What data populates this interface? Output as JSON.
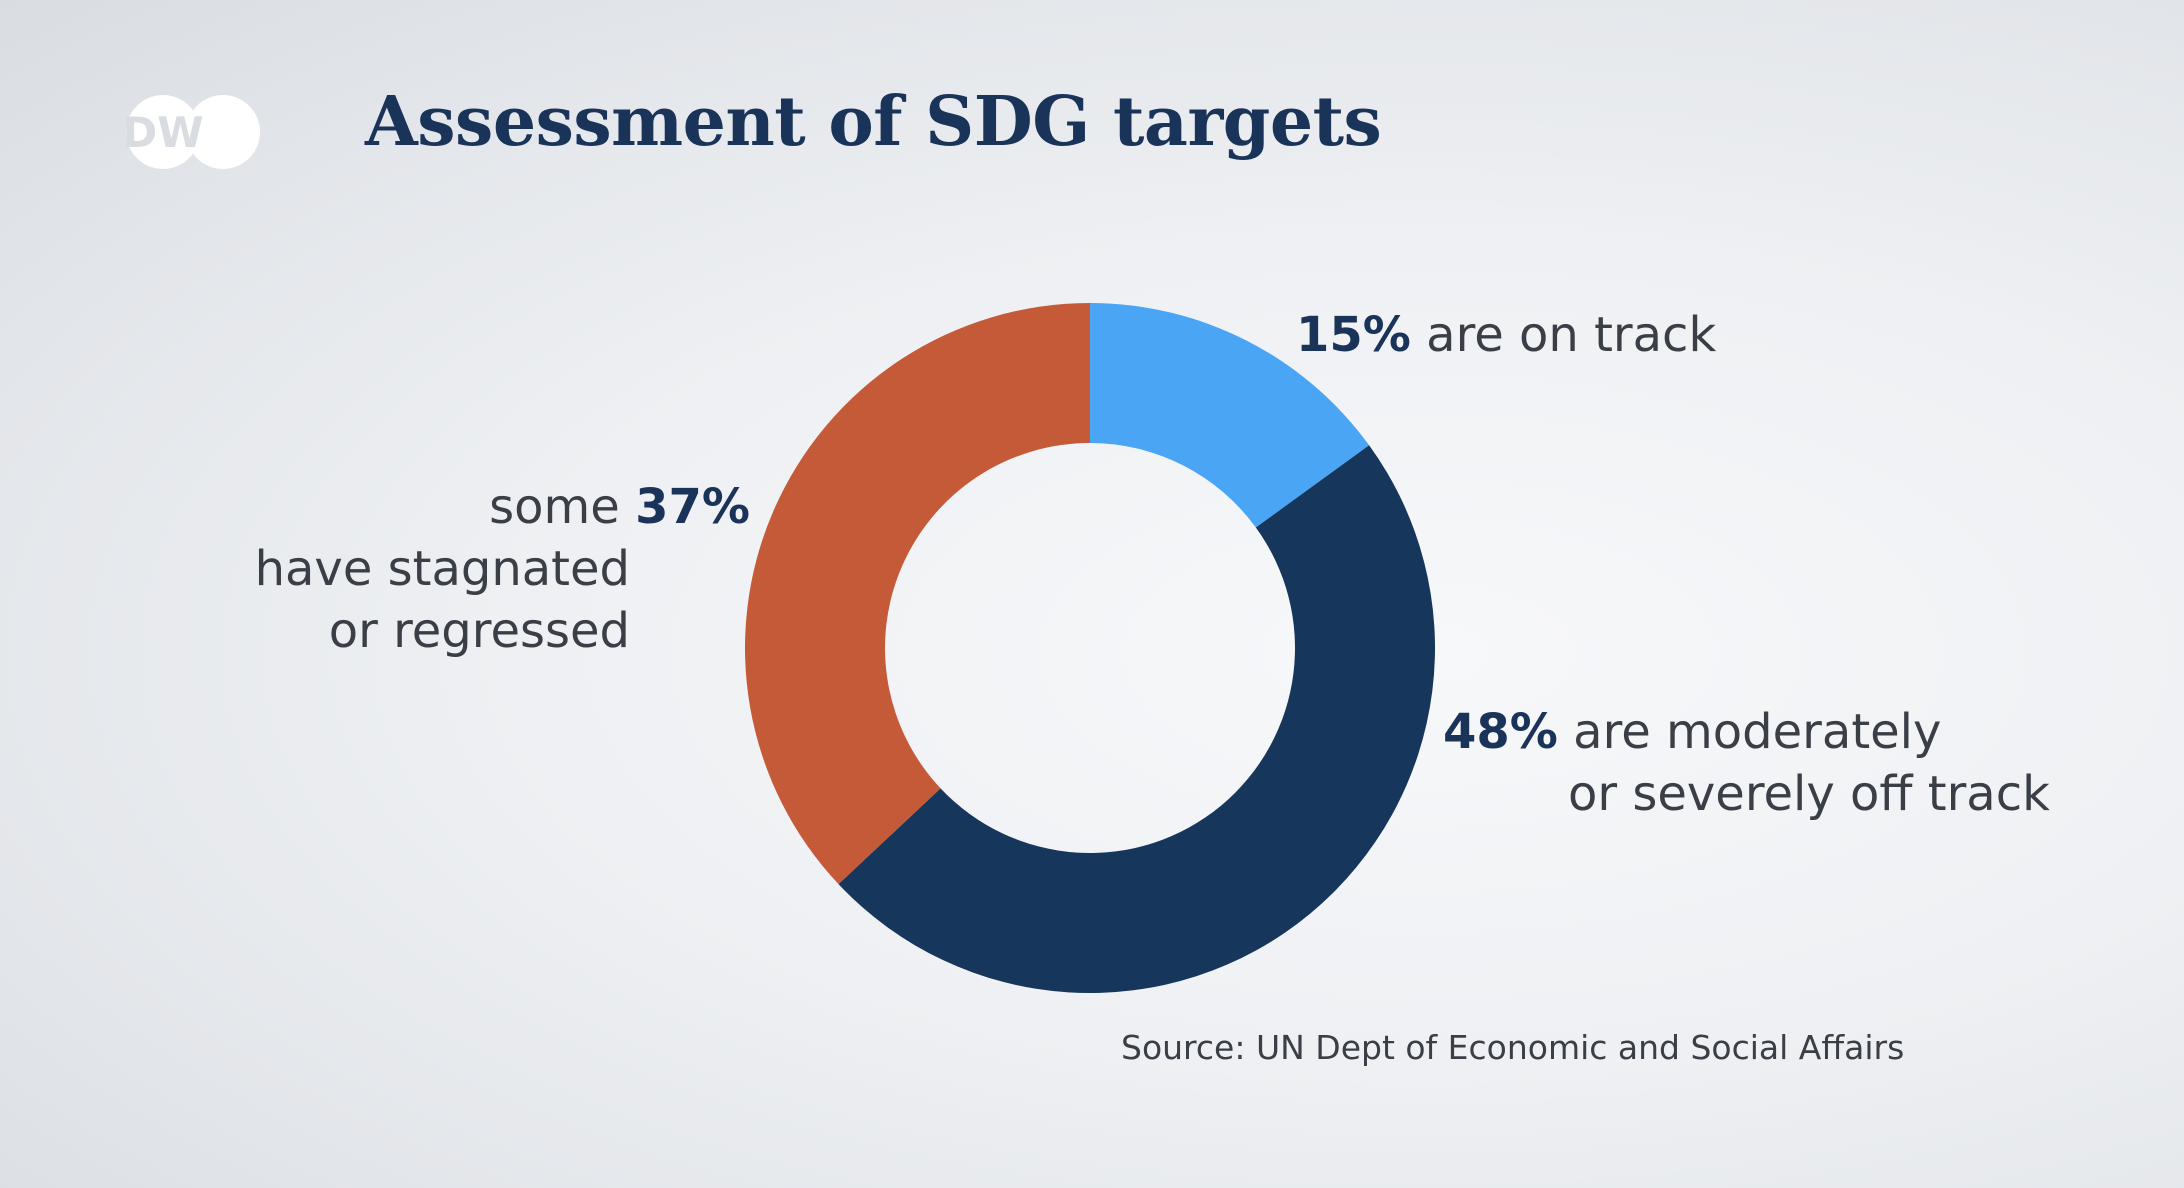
{
  "brand": {
    "logo_text": "DW"
  },
  "chart_data": {
    "type": "pie",
    "title": "Assessment of SDG targets",
    "donut": true,
    "slices": [
      {
        "value": 15,
        "color": "#4aa6f5",
        "label_pct": "15%",
        "label_prefix": "",
        "label_lines": [
          "are on track"
        ]
      },
      {
        "value": 48,
        "color": "#16365c",
        "label_pct": "48%",
        "label_prefix": "",
        "label_lines": [
          "are moderately",
          "or severely off track"
        ]
      },
      {
        "value": 37,
        "color": "#c45a37",
        "label_pct": "37%",
        "label_prefix": "some",
        "label_lines": [
          "have stagnated",
          "or regressed"
        ]
      }
    ],
    "source": "Source: UN Dept of Economic and Social Affairs"
  }
}
